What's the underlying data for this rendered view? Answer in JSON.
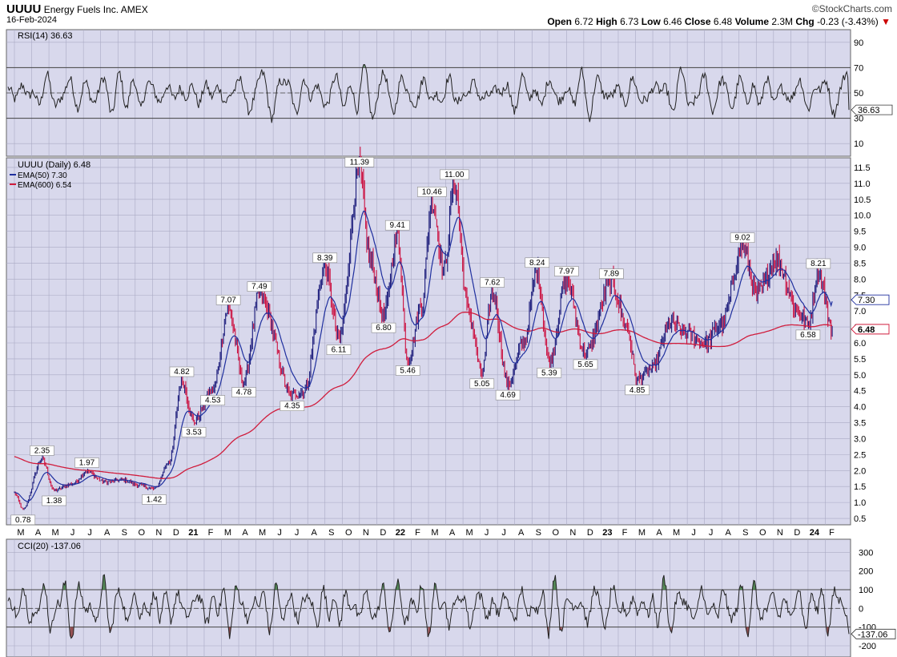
{
  "header": {
    "symbol": "UUUU",
    "company": "Energy Fuels Inc.",
    "exchange": "AMEX",
    "date": "16-Feb-2024",
    "brand": "©StockCharts.com",
    "open_label": "Open",
    "open": "6.72",
    "high_label": "High",
    "high": "6.73",
    "low_label": "Low",
    "low": "6.46",
    "close_label": "Close",
    "close": "6.48",
    "volume_label": "Volume",
    "volume": "2.3M",
    "chg_label": "Chg",
    "chg": "-0.23 (-3.43%)",
    "chg_arrow": "▼"
  },
  "colors": {
    "panel_bg": "#d8d8ec",
    "grid": "#aaaac4",
    "ema50": "#1f2f9e",
    "ema600": "#d01c3c",
    "candle_up": "#1a1a7a",
    "candle_down": "#cc1040",
    "rsi_line": "#222222",
    "overbought_fill": "#3d7a3d",
    "oversold_fill": "#8a3a3a"
  },
  "chart_data": [
    {
      "type": "line",
      "title": "RSI(14) 36.63",
      "indicator": "RSI(14)",
      "current_value": 36.63,
      "current_label": "36.63",
      "ylim": [
        0,
        100
      ],
      "yticks": [
        "90",
        "70",
        "50",
        "30",
        "10"
      ],
      "ytick_values": [
        90,
        70,
        50,
        30,
        10
      ],
      "reference_lines": [
        70,
        50,
        30
      ],
      "shape_period_bars": [
        16,
        21,
        13,
        24,
        11,
        19,
        15,
        22,
        14,
        18
      ]
    },
    {
      "type": "line",
      "title": "UUUU (Daily) 6.48",
      "legend": [
        {
          "name": "EMA(50) 7.30",
          "color": "#1f2f9e"
        },
        {
          "name": "EMA(600) 6.54",
          "color": "#d01c3c"
        }
      ],
      "x": [
        "M",
        "A",
        "M",
        "J",
        "J",
        "A",
        "S",
        "O",
        "N",
        "D",
        "21",
        "F",
        "M",
        "A",
        "M",
        "J",
        "J",
        "A",
        "S",
        "O",
        "N",
        "D",
        "22",
        "F",
        "M",
        "A",
        "M",
        "J",
        "J",
        "A",
        "S",
        "O",
        "N",
        "D",
        "23",
        "F",
        "M",
        "A",
        "M",
        "J",
        "J",
        "A",
        "S",
        "O",
        "N",
        "D",
        "24",
        "F"
      ],
      "x_bold": [
        "21",
        "22",
        "23",
        "24"
      ],
      "ylim": [
        0.3,
        11.8
      ],
      "yticks": [
        "11.5",
        "11.0",
        "10.5",
        "10.0",
        "9.5",
        "9.0",
        "8.5",
        "8.0",
        "7.5",
        "7.0",
        "6.5",
        "6.0",
        "5.5",
        "5.0",
        "4.5",
        "4.0",
        "3.5",
        "3.0",
        "2.5",
        "2.0",
        "1.5",
        "1.0",
        "0.5"
      ],
      "ytick_values": [
        11.5,
        11.0,
        10.5,
        10.0,
        9.5,
        9.0,
        8.5,
        8.0,
        7.5,
        7.0,
        6.5,
        6.0,
        5.5,
        5.0,
        4.5,
        4.0,
        3.5,
        3.0,
        2.5,
        2.0,
        1.5,
        1.0,
        0.5
      ],
      "price_keypoints": [
        {
          "month": 0,
          "price": 1.3
        },
        {
          "month": 0.5,
          "price": 0.78
        },
        {
          "month": 1.6,
          "price": 2.35
        },
        {
          "month": 2.3,
          "price": 1.38
        },
        {
          "month": 3.4,
          "price": 1.6
        },
        {
          "month": 4.2,
          "price": 1.97
        },
        {
          "month": 5.2,
          "price": 1.65
        },
        {
          "month": 6.3,
          "price": 1.7
        },
        {
          "month": 7.2,
          "price": 1.55
        },
        {
          "month": 8.1,
          "price": 1.42
        },
        {
          "month": 9.0,
          "price": 2.3
        },
        {
          "month": 9.7,
          "price": 4.82
        },
        {
          "month": 10.4,
          "price": 3.53
        },
        {
          "month": 11.5,
          "price": 4.53
        },
        {
          "month": 12.4,
          "price": 7.07
        },
        {
          "month": 13.3,
          "price": 4.78
        },
        {
          "month": 14.2,
          "price": 7.49
        },
        {
          "month": 16.1,
          "price": 4.35
        },
        {
          "month": 16.8,
          "price": 4.5
        },
        {
          "month": 18.0,
          "price": 8.39
        },
        {
          "month": 18.8,
          "price": 6.11
        },
        {
          "month": 20.0,
          "price": 11.39
        },
        {
          "month": 20.6,
          "price": 8.6
        },
        {
          "month": 21.4,
          "price": 6.8
        },
        {
          "month": 22.2,
          "price": 9.41
        },
        {
          "month": 22.8,
          "price": 5.46
        },
        {
          "month": 23.6,
          "price": 7.2
        },
        {
          "month": 24.2,
          "price": 10.46
        },
        {
          "month": 24.9,
          "price": 8.3
        },
        {
          "month": 25.5,
          "price": 11.0
        },
        {
          "month": 26.3,
          "price": 7.0
        },
        {
          "month": 27.1,
          "price": 5.05
        },
        {
          "month": 27.7,
          "price": 7.62
        },
        {
          "month": 28.6,
          "price": 4.69
        },
        {
          "month": 29.5,
          "price": 6.0
        },
        {
          "month": 30.3,
          "price": 8.24
        },
        {
          "month": 31.0,
          "price": 5.39
        },
        {
          "month": 32.0,
          "price": 7.97
        },
        {
          "month": 33.1,
          "price": 5.65
        },
        {
          "month": 34.6,
          "price": 7.89
        },
        {
          "month": 35.5,
          "price": 6.5
        },
        {
          "month": 36.1,
          "price": 4.85
        },
        {
          "month": 37.0,
          "price": 5.2
        },
        {
          "month": 38.0,
          "price": 6.6
        },
        {
          "month": 39.0,
          "price": 6.3
        },
        {
          "month": 40.0,
          "price": 6.0
        },
        {
          "month": 41.0,
          "price": 6.6
        },
        {
          "month": 42.2,
          "price": 9.02
        },
        {
          "month": 43.0,
          "price": 7.5
        },
        {
          "month": 44.2,
          "price": 8.6
        },
        {
          "month": 45.4,
          "price": 7.0
        },
        {
          "month": 46.0,
          "price": 6.58
        },
        {
          "month": 46.6,
          "price": 8.21
        },
        {
          "month": 47.4,
          "price": 6.48
        }
      ],
      "labels": [
        {
          "month": 0.5,
          "value": 0.78,
          "text": "0.78",
          "pos": "below"
        },
        {
          "month": 1.6,
          "value": 2.35,
          "text": "2.35",
          "pos": "above"
        },
        {
          "month": 2.3,
          "value": 1.38,
          "text": "1.38",
          "pos": "below"
        },
        {
          "month": 4.2,
          "value": 1.97,
          "text": "1.97",
          "pos": "above"
        },
        {
          "month": 8.1,
          "value": 1.42,
          "text": "1.42",
          "pos": "below"
        },
        {
          "month": 9.7,
          "value": 4.82,
          "text": "4.82",
          "pos": "above"
        },
        {
          "month": 10.4,
          "value": 3.53,
          "text": "3.53",
          "pos": "below"
        },
        {
          "month": 11.5,
          "value": 4.53,
          "text": "4.53",
          "pos": "below"
        },
        {
          "month": 12.4,
          "value": 7.07,
          "text": "7.07",
          "pos": "above"
        },
        {
          "month": 13.3,
          "value": 4.78,
          "text": "4.78",
          "pos": "below"
        },
        {
          "month": 14.2,
          "value": 7.49,
          "text": "7.49",
          "pos": "above"
        },
        {
          "month": 16.1,
          "value": 4.35,
          "text": "4.35",
          "pos": "below"
        },
        {
          "month": 18.0,
          "value": 8.39,
          "text": "8.39",
          "pos": "above"
        },
        {
          "month": 18.8,
          "value": 6.11,
          "text": "6.11",
          "pos": "below"
        },
        {
          "month": 20.0,
          "value": 11.39,
          "text": "11.39",
          "pos": "above"
        },
        {
          "month": 21.4,
          "value": 6.8,
          "text": "6.80",
          "pos": "below"
        },
        {
          "month": 22.2,
          "value": 9.41,
          "text": "9.41",
          "pos": "above"
        },
        {
          "month": 22.8,
          "value": 5.46,
          "text": "5.46",
          "pos": "below"
        },
        {
          "month": 24.2,
          "value": 10.46,
          "text": "10.46",
          "pos": "above"
        },
        {
          "month": 25.5,
          "value": 11.0,
          "text": "11.00",
          "pos": "above"
        },
        {
          "month": 27.1,
          "value": 5.05,
          "text": "5.05",
          "pos": "below"
        },
        {
          "month": 27.7,
          "value": 7.62,
          "text": "7.62",
          "pos": "above"
        },
        {
          "month": 28.6,
          "value": 4.69,
          "text": "4.69",
          "pos": "below"
        },
        {
          "month": 30.3,
          "value": 8.24,
          "text": "8.24",
          "pos": "above"
        },
        {
          "month": 31.0,
          "value": 5.39,
          "text": "5.39",
          "pos": "below"
        },
        {
          "month": 32.0,
          "value": 7.97,
          "text": "7.97",
          "pos": "above"
        },
        {
          "month": 33.1,
          "value": 5.65,
          "text": "5.65",
          "pos": "below"
        },
        {
          "month": 34.6,
          "value": 7.89,
          "text": "7.89",
          "pos": "above"
        },
        {
          "month": 36.1,
          "value": 4.85,
          "text": "4.85",
          "pos": "below"
        },
        {
          "month": 42.2,
          "value": 9.02,
          "text": "9.02",
          "pos": "above"
        },
        {
          "month": 46.0,
          "value": 6.58,
          "text": "6.58",
          "pos": "below"
        },
        {
          "month": 46.6,
          "value": 8.21,
          "text": "8.21",
          "pos": "above"
        }
      ],
      "ema50_label": "7.30",
      "ema50_value": 7.3,
      "price_label": "6.48",
      "price_value": 6.48,
      "ema600_value": 6.54
    },
    {
      "type": "line",
      "title": "CCI(20) -137.06",
      "indicator": "CCI(20)",
      "current_value": -137.06,
      "current_label": "-137.06",
      "ylim": [
        -260,
        370
      ],
      "yticks": [
        "300",
        "200",
        "100",
        "0",
        "-100",
        "-200"
      ],
      "ytick_values": [
        300,
        200,
        100,
        0,
        -100,
        -200
      ],
      "reference_lines": [
        100,
        0,
        -100
      ],
      "shape_period_bars": [
        12,
        17,
        9,
        20,
        14,
        11,
        18,
        10,
        16,
        13
      ]
    }
  ]
}
